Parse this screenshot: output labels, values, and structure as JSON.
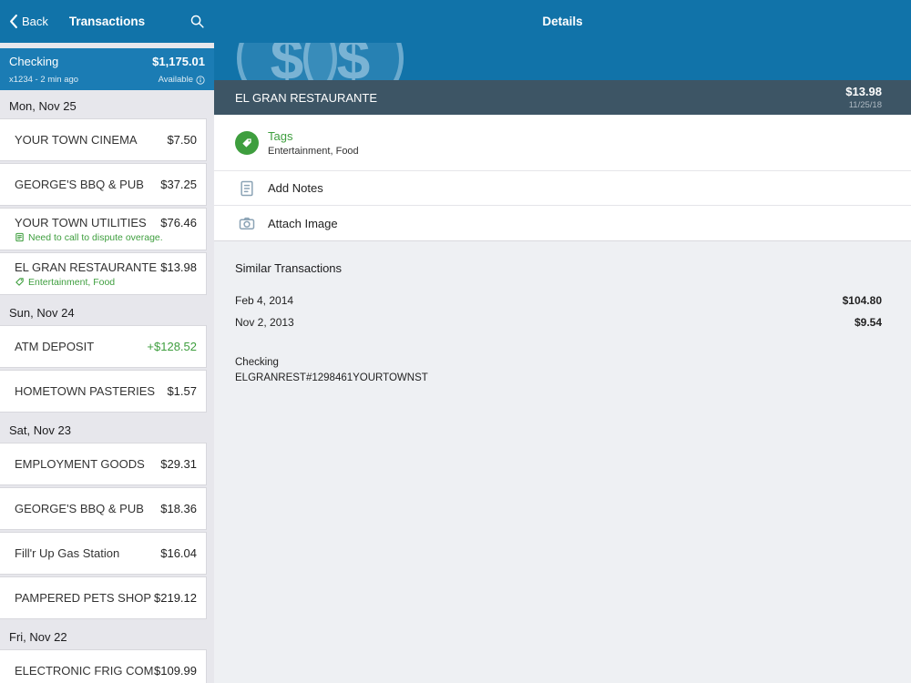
{
  "colors": {
    "nav_blue": "#1173a9",
    "card_blue": "#1b7cb4",
    "band_slate": "#3d5565",
    "accent_green": "#3e9e3e",
    "panel_gray": "#e7e7ec",
    "detail_gray": "#eef0f3"
  },
  "icons": {
    "back": "chevron-left-icon",
    "search": "search-icon",
    "info": "info-icon",
    "tag": "tag-icon",
    "memo": "memo-icon",
    "notes": "notes-icon",
    "camera": "camera-icon",
    "watermark": "dollar-circle-watermark"
  },
  "left": {
    "nav": {
      "back_label": "Back",
      "title": "Transactions"
    },
    "account": {
      "name": "Checking",
      "balance": "$1,175.01",
      "meta": "x1234 - 2 min ago",
      "available_label": "Available"
    },
    "groups": [
      {
        "date": "Mon, Nov 25",
        "items": [
          {
            "name": "YOUR TOWN CINEMA",
            "amount": "$7.50"
          },
          {
            "name": "GEORGE'S BBQ & PUB",
            "amount": "$37.25"
          },
          {
            "name": "YOUR TOWN UTILITIES",
            "amount": "$76.46",
            "note": "Need to call to dispute overage.",
            "note_icon": "memo-icon"
          },
          {
            "name": "EL GRAN RESTAURANTE",
            "amount": "$13.98",
            "note": "Entertainment, Food",
            "note_icon": "tag-icon"
          }
        ]
      },
      {
        "date": "Sun, Nov 24",
        "items": [
          {
            "name": "ATM DEPOSIT",
            "amount": "+$128.52",
            "credit": true
          },
          {
            "name": "HOMETOWN PASTERIES",
            "amount": "$1.57"
          }
        ]
      },
      {
        "date": "Sat, Nov 23",
        "items": [
          {
            "name": "EMPLOYMENT GOODS",
            "amount": "$29.31"
          },
          {
            "name": "GEORGE'S BBQ & PUB",
            "amount": "$18.36"
          },
          {
            "name": "Fill'r Up Gas Station",
            "amount": "$16.04"
          },
          {
            "name": "PAMPERED PETS SHOP",
            "amount": "$219.12"
          }
        ]
      },
      {
        "date": "Fri, Nov 22",
        "items": [
          {
            "name": "ELECTRONIC FRIG COM",
            "amount": "$109.99"
          }
        ]
      }
    ]
  },
  "right": {
    "nav_title": "Details",
    "header": {
      "merchant": "EL GRAN RESTAURANTE",
      "amount": "$13.98",
      "date": "11/25/18"
    },
    "actions": [
      {
        "label": "Tags",
        "sub": "Entertainment, Food",
        "icon": "tag-icon"
      },
      {
        "label": "Add Notes",
        "icon": "notes-icon"
      },
      {
        "label": "Attach Image",
        "icon": "camera-icon"
      }
    ],
    "similar": {
      "title": "Similar Transactions",
      "rows": [
        {
          "date": "Feb 4, 2014",
          "amount": "$104.80"
        },
        {
          "date": "Nov 2, 2013",
          "amount": "$9.54"
        }
      ]
    },
    "footer": {
      "account": "Checking",
      "descriptor": "ELGRANREST#1298461YOURTOWNST"
    }
  }
}
